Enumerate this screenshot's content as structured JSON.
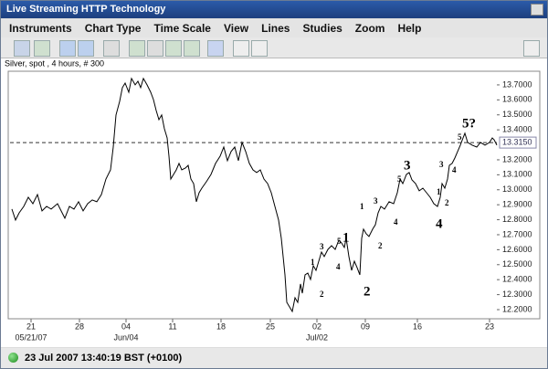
{
  "window": {
    "title": "Live Streaming HTTP Technology"
  },
  "menu": [
    "Instruments",
    "Chart Type",
    "Time Scale",
    "View",
    "Lines",
    "Studies",
    "Zoom",
    "Help"
  ],
  "chart_data": {
    "type": "line",
    "title": "Silver, spot , 4 hours, # 300",
    "color": "#000000",
    "x": [
      2,
      6,
      10,
      15,
      20,
      25,
      30,
      35,
      40,
      45,
      52,
      60,
      65,
      70,
      75,
      80,
      85,
      90,
      95,
      100,
      105,
      110,
      113,
      116,
      120,
      123,
      126,
      130,
      133,
      137,
      140,
      143,
      146,
      150,
      154,
      157,
      160,
      163,
      166,
      169,
      172,
      174,
      176,
      179,
      182,
      185,
      188,
      192,
      195,
      198,
      201,
      204,
      207,
      210,
      215,
      220,
      225,
      230,
      234,
      238,
      242,
      246,
      250,
      254,
      258,
      262,
      266,
      270,
      274,
      278,
      282,
      286,
      290,
      294,
      297,
      299,
      301,
      303,
      306,
      309,
      312,
      315,
      318,
      320,
      323,
      326,
      329,
      332,
      335,
      338,
      341,
      344,
      348,
      352,
      356,
      360,
      363,
      366,
      368,
      371,
      374,
      377,
      380,
      383,
      385,
      387,
      390,
      393,
      397,
      400,
      403,
      406,
      410,
      415,
      420,
      424,
      427,
      430,
      434,
      437,
      440,
      444,
      448,
      452,
      456,
      460,
      464,
      468,
      471,
      473,
      476,
      479,
      481,
      484,
      487,
      490,
      493,
      496,
      498,
      501,
      506,
      511,
      515,
      520,
      525,
      528,
      530,
      533
    ],
    "values": [
      12.871,
      12.798,
      12.846,
      12.889,
      12.95,
      12.907,
      12.968,
      12.859,
      12.889,
      12.871,
      12.907,
      12.81,
      12.889,
      12.871,
      12.92,
      12.859,
      12.907,
      12.932,
      12.92,
      12.968,
      13.072,
      13.133,
      13.285,
      13.499,
      13.59,
      13.682,
      13.712,
      13.651,
      13.743,
      13.7,
      13.724,
      13.682,
      13.743,
      13.7,
      13.651,
      13.602,
      13.529,
      13.468,
      13.499,
      13.407,
      13.346,
      13.224,
      13.072,
      13.102,
      13.133,
      13.176,
      13.133,
      13.145,
      13.163,
      13.072,
      13.041,
      12.92,
      12.98,
      13.011,
      13.054,
      13.102,
      13.176,
      13.224,
      13.285,
      13.194,
      13.255,
      13.285,
      13.194,
      13.316,
      13.255,
      13.176,
      13.133,
      13.115,
      13.133,
      13.072,
      13.041,
      12.98,
      12.889,
      12.798,
      12.676,
      12.554,
      12.432,
      12.249,
      12.218,
      12.188,
      12.279,
      12.249,
      12.371,
      12.31,
      12.432,
      12.444,
      12.401,
      12.493,
      12.462,
      12.523,
      12.584,
      12.554,
      12.602,
      12.627,
      12.602,
      12.663,
      12.645,
      12.615,
      12.676,
      12.554,
      12.462,
      12.523,
      12.48,
      12.432,
      12.676,
      12.737,
      12.706,
      12.688,
      12.737,
      12.767,
      12.846,
      12.889,
      12.871,
      12.92,
      12.907,
      12.98,
      13.072,
      13.041,
      13.102,
      13.115,
      13.066,
      13.041,
      12.993,
      13.011,
      12.98,
      12.95,
      12.907,
      12.889,
      12.95,
      13.041,
      13.011,
      13.072,
      13.163,
      13.176,
      13.212,
      13.255,
      13.298,
      13.346,
      13.377,
      13.316,
      13.298,
      13.285,
      13.316,
      13.298,
      13.316,
      13.346,
      13.334,
      13.298
    ],
    "xlim": [
      0,
      533
    ],
    "ylim": [
      12.139,
      13.785
    ],
    "yticks": [
      {
        "value": 12.2,
        "label": "12.2000"
      },
      {
        "value": 12.3,
        "label": "12.3000"
      },
      {
        "value": 12.4,
        "label": "12.4000"
      },
      {
        "value": 12.5,
        "label": "12.5000"
      },
      {
        "value": 12.6,
        "label": "12.6000"
      },
      {
        "value": 12.7,
        "label": "12.7000"
      },
      {
        "value": 12.8,
        "label": "12.8000"
      },
      {
        "value": 12.9,
        "label": "12.9000"
      },
      {
        "value": 13,
        "label": "13.0000"
      },
      {
        "value": 13.1,
        "label": "13.1000"
      },
      {
        "value": 13.2,
        "label": "13.2000"
      },
      {
        "value": 13.4,
        "label": "13.4000"
      },
      {
        "value": 13.5,
        "label": "13.5000"
      },
      {
        "value": 13.6,
        "label": "13.6000"
      },
      {
        "value": 13.7,
        "label": "13.7000"
      }
    ],
    "xticks": [
      {
        "value": 23,
        "label": "21"
      },
      {
        "value": 76,
        "label": "28"
      },
      {
        "value": 127,
        "label": "04"
      },
      {
        "value": 178,
        "label": "11"
      },
      {
        "value": 231,
        "label": "18"
      },
      {
        "value": 285,
        "label": "25"
      },
      {
        "value": 336,
        "label": "02"
      },
      {
        "value": 389,
        "label": "09"
      },
      {
        "value": 446,
        "label": "16"
      },
      {
        "value": 525,
        "label": "23"
      }
    ],
    "xsublabels": [
      {
        "value": 23,
        "label": "05/21/07"
      },
      {
        "value": 127,
        "label": "Jun/04"
      },
      {
        "value": 336,
        "label": "Jul/02"
      }
    ],
    "reference_line": {
      "value": 13.315,
      "label": "13.3150"
    },
    "annotations": [
      "1",
      "2",
      "3",
      "4",
      "5",
      "1",
      "2",
      "1",
      "2",
      "3",
      "4",
      "5",
      "3",
      "1",
      "2",
      "3",
      "4",
      "4",
      "5",
      "5?"
    ]
  },
  "status_bar": {
    "timestamp": "23 Jul 2007 13:40:19 BST (+0100)"
  }
}
